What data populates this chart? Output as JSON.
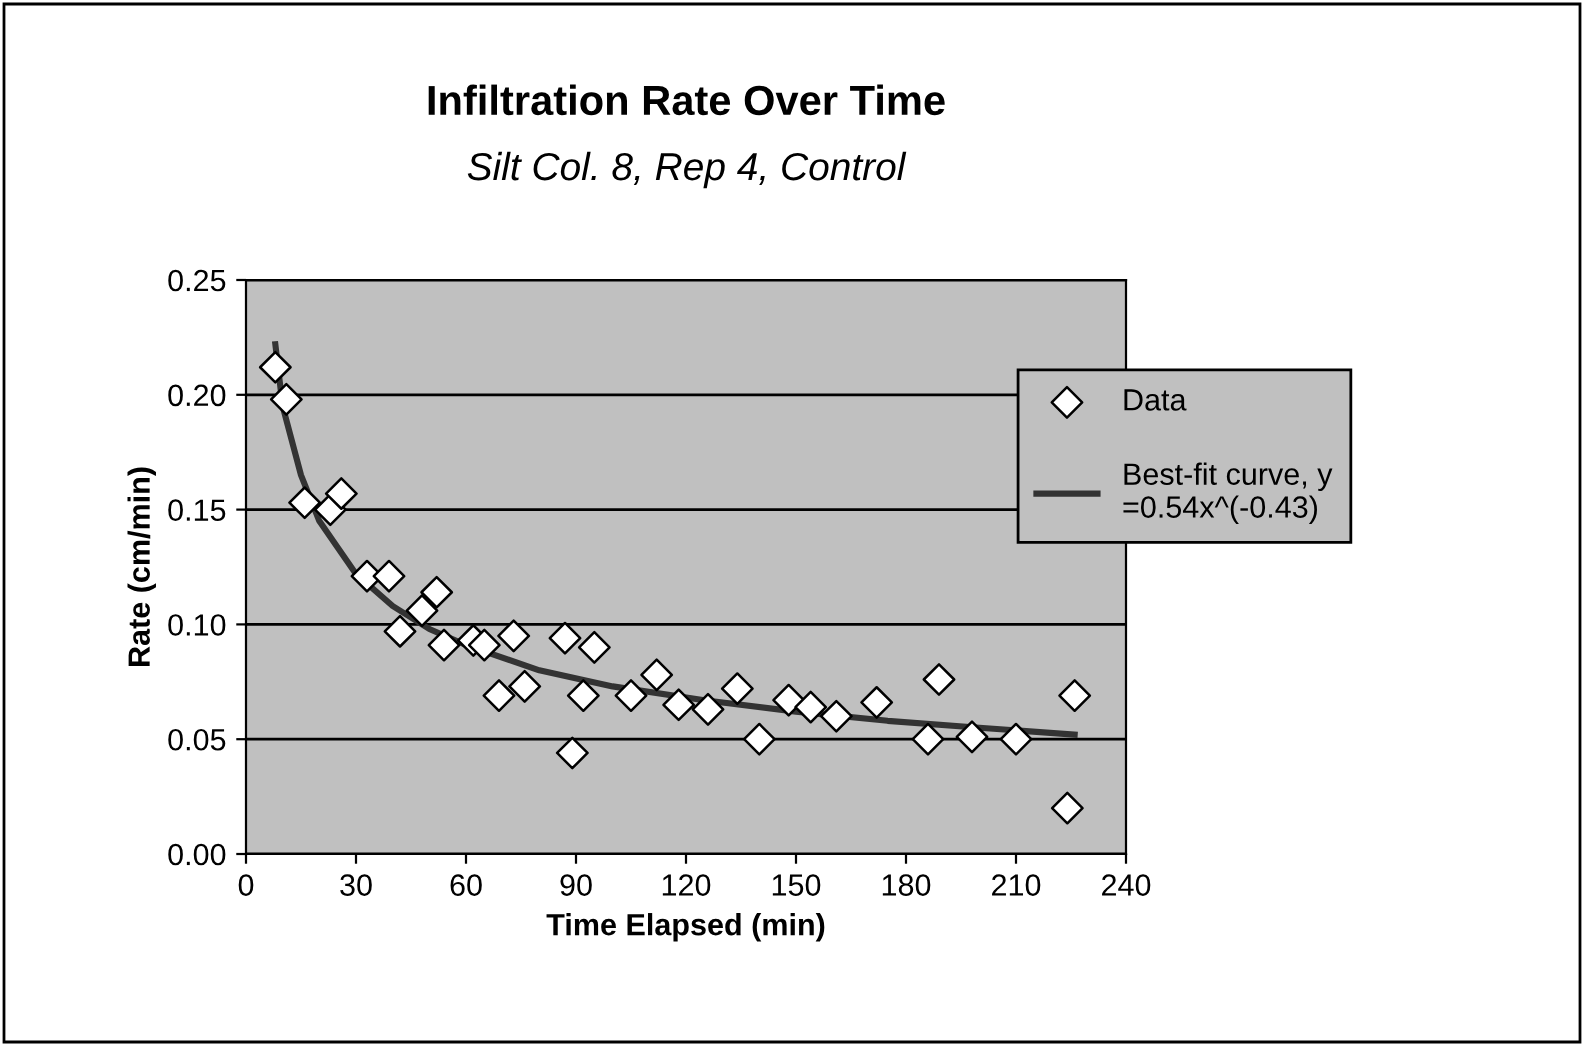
{
  "chart_data": {
    "type": "scatter",
    "title": "Infiltration Rate Over Time",
    "subtitle": "Silt Col. 8, Rep 4, Control",
    "xlabel": "Time Elapsed (min)",
    "ylabel": "Rate (cm/min)",
    "xlim": [
      0,
      240
    ],
    "xticks": [
      0,
      30,
      60,
      90,
      120,
      150,
      180,
      210,
      240
    ],
    "ylim": [
      0,
      0.25
    ],
    "yticks": [
      {
        "value": 0,
        "label": "0.00"
      },
      {
        "value": 0.05,
        "label": "0.05"
      },
      {
        "value": 0.1,
        "label": "0.10"
      },
      {
        "value": 0.15,
        "label": "0.15"
      },
      {
        "value": 0.2,
        "label": "0.20"
      },
      {
        "value": 0.25,
        "label": "0.25"
      }
    ],
    "grid": "y",
    "legend": "right",
    "series": [
      {
        "name": "Data",
        "marker": "diamond",
        "color": "#ffffff",
        "x": [
          8,
          11,
          16,
          23,
          26,
          33,
          39,
          42,
          48,
          52,
          54,
          62,
          65,
          69,
          73,
          76,
          87,
          89,
          92,
          95,
          105,
          112,
          118,
          126,
          134,
          140,
          148,
          154,
          161,
          172,
          186,
          189,
          198,
          210,
          224,
          226
        ],
        "values": [
          0.212,
          0.198,
          0.153,
          0.15,
          0.157,
          0.121,
          0.121,
          0.097,
          0.106,
          0.114,
          0.091,
          0.093,
          0.091,
          0.069,
          0.095,
          0.073,
          0.094,
          0.044,
          0.069,
          0.09,
          0.069,
          0.078,
          0.065,
          0.063,
          0.072,
          0.05,
          0.067,
          0.064,
          0.06,
          0.066,
          0.05,
          0.076,
          0.051,
          0.05,
          0.02,
          0.069
        ]
      },
      {
        "name": "Best-fit curve, y =0.54x^(-0.43)",
        "type": "line",
        "marker": "none",
        "color": "#333333",
        "x": [
          8,
          10,
          15,
          20,
          30,
          40,
          50,
          60,
          80,
          100,
          125,
          150,
          175,
          200,
          226
        ],
        "values": [
          0.222,
          0.195,
          0.165,
          0.145,
          0.122,
          0.108,
          0.098,
          0.091,
          0.08,
          0.073,
          0.067,
          0.062,
          0.058,
          0.055,
          0.052
        ]
      }
    ]
  }
}
